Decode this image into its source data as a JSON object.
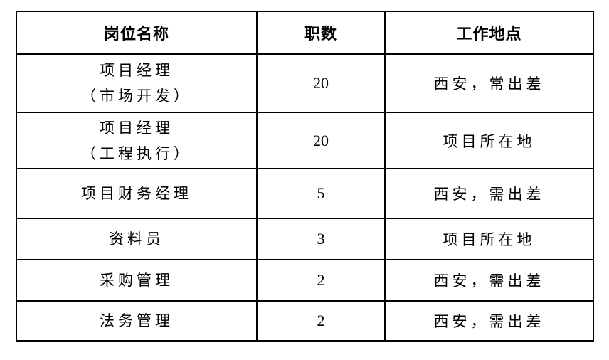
{
  "table": {
    "headers": [
      "岗位名称",
      "职数",
      "工作地点"
    ],
    "rows": [
      {
        "position_lines": [
          "项目经理",
          "（市场开发）"
        ],
        "count": "20",
        "location": "西安，常出差"
      },
      {
        "position_lines": [
          "项目经理",
          "（工程执行）"
        ],
        "count": "20",
        "location": "项目所在地"
      },
      {
        "position_lines": [
          "项目财务经理"
        ],
        "count": "5",
        "location": "西安，需出差"
      },
      {
        "position_lines": [
          "资料员"
        ],
        "count": "3",
        "location": "项目所在地"
      },
      {
        "position_lines": [
          "采购管理"
        ],
        "count": "2",
        "location": "西安，需出差"
      },
      {
        "position_lines": [
          "法务管理"
        ],
        "count": "2",
        "location": "西安，需出差"
      }
    ],
    "colors": {
      "border": "#000000",
      "text": "#000000",
      "background": "#ffffff"
    }
  },
  "chart_data": {
    "type": "table",
    "title": "",
    "columns": [
      "岗位名称",
      "职数",
      "工作地点"
    ],
    "rows": [
      [
        "项目经理（市场开发）",
        "20",
        "西安，常出差"
      ],
      [
        "项目经理（工程执行）",
        "20",
        "项目所在地"
      ],
      [
        "项目财务经理",
        "5",
        "西安，需出差"
      ],
      [
        "资料员",
        "3",
        "项目所在地"
      ],
      [
        "采购管理",
        "2",
        "西安，需出差"
      ],
      [
        "法务管理",
        "2",
        "西安，需出差"
      ]
    ]
  }
}
